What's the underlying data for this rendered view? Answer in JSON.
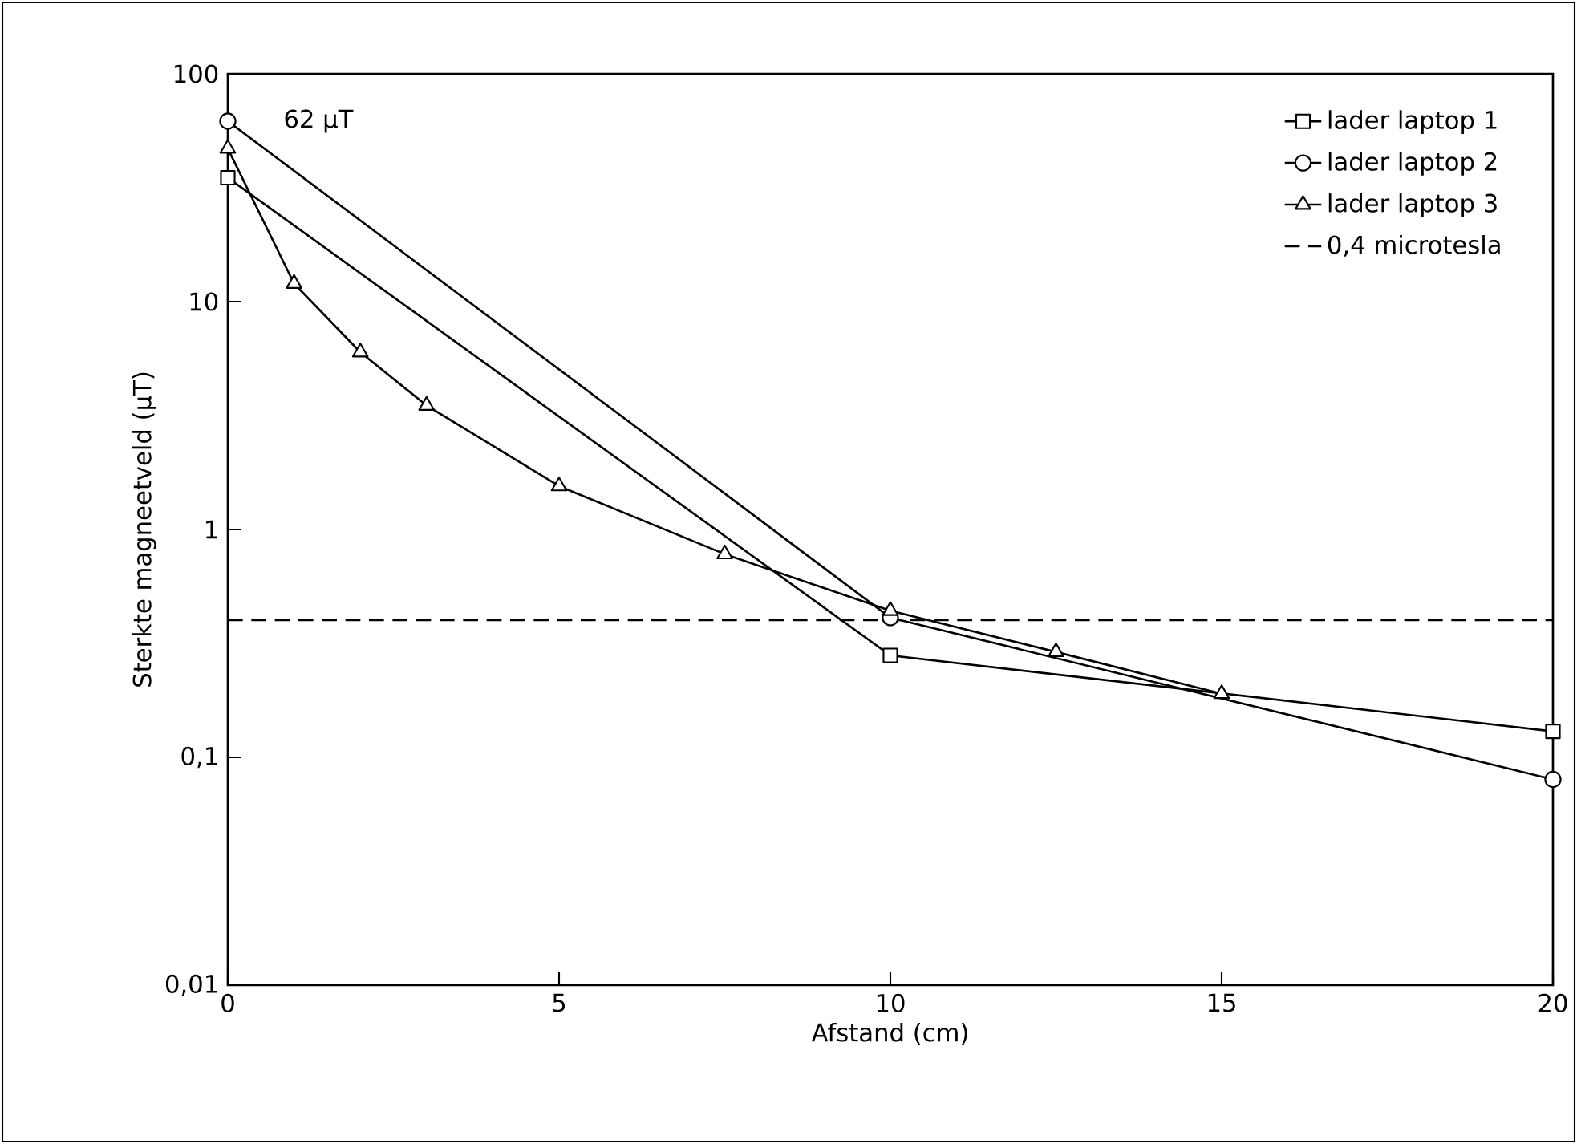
{
  "chart_data": {
    "type": "line",
    "xlabel": "Afstand (cm)",
    "ylabel": "Sterkte magneetveld (µT)",
    "log": "y",
    "xlim": [
      0,
      20
    ],
    "xticks": [
      0,
      5,
      10,
      15,
      20
    ],
    "ylim": [
      0.01,
      100
    ],
    "yticks": [
      {
        "value": 0.01,
        "label": "0,01"
      },
      {
        "value": 0.1,
        "label": "0,1"
      },
      1,
      10,
      100
    ],
    "legend": "top right",
    "grid": false,
    "series": [
      {
        "name": "lader laptop 1",
        "color": "#000000",
        "marker": "square",
        "x": [
          0,
          10,
          20
        ],
        "values": [
          35,
          0.28,
          0.13
        ]
      },
      {
        "name": "lader laptop 2",
        "color": "#000000",
        "marker": "circle",
        "x": [
          0,
          10,
          20
        ],
        "values": [
          62,
          0.41,
          0.08
        ]
      },
      {
        "name": "lader laptop 3",
        "color": "#000000",
        "marker": "triangle",
        "x": [
          0,
          1,
          2,
          3,
          5,
          7.5,
          10,
          12.5,
          15
        ],
        "values": [
          47,
          12,
          6,
          3.5,
          1.55,
          0.78,
          0.44,
          0.29,
          0.19
        ]
      }
    ],
    "ref_lines": [
      {
        "axis": "y",
        "value": 0.4,
        "label": "0,4 microtesla",
        "color": "#000000",
        "line_style": "dashed"
      }
    ],
    "annotations": [
      {
        "text": "62 µT",
        "x": 0,
        "y": 62
      }
    ]
  }
}
